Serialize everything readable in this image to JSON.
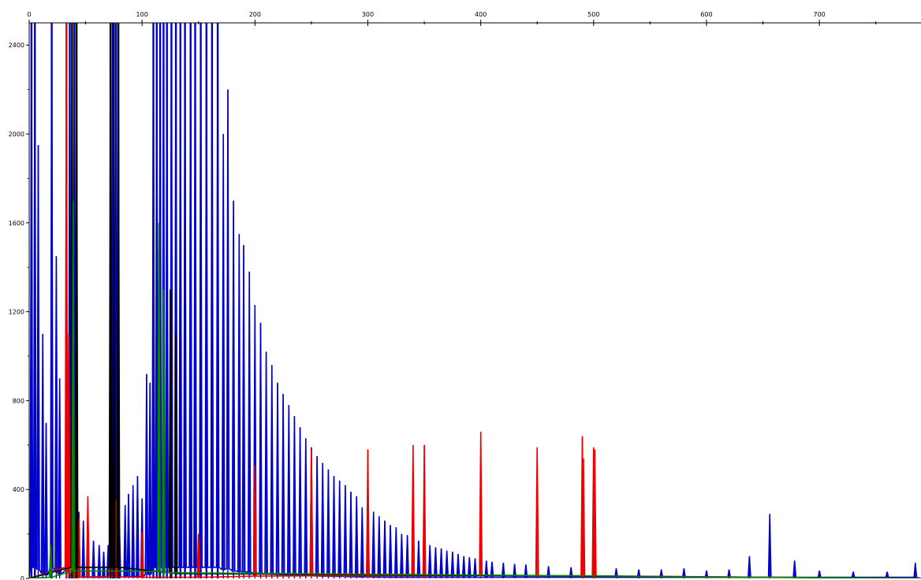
{
  "chart_data": {
    "type": "line",
    "title": "",
    "xlabel": "",
    "ylabel": "",
    "xlim": [
      0,
      790
    ],
    "ylim": [
      0,
      2500
    ],
    "grid": false,
    "x_ticks": [
      0,
      100,
      200,
      300,
      400,
      500,
      600,
      700
    ],
    "y_ticks": [
      0,
      400,
      800,
      1200,
      1600,
      2000,
      2400
    ],
    "x_tick_labels": [
      "0",
      "100",
      "200",
      "300",
      "400",
      "500",
      "600",
      "700"
    ],
    "y_tick_labels": [
      "0",
      "400",
      "800",
      "1200",
      "1600",
      "2000",
      "2400"
    ],
    "series": [
      {
        "color": "#0000cc",
        "peaks": [
          [
            2,
            2500
          ],
          [
            5,
            2500
          ],
          [
            8,
            1950
          ],
          [
            12,
            1100
          ],
          [
            15,
            700
          ],
          [
            20,
            2500
          ],
          [
            24,
            1450
          ],
          [
            27,
            900
          ],
          [
            36,
            2500
          ],
          [
            40,
            2500
          ],
          [
            44,
            300
          ],
          [
            48,
            260
          ],
          [
            52,
            200
          ],
          [
            57,
            170
          ],
          [
            62,
            150
          ],
          [
            66,
            120
          ],
          [
            70,
            150
          ],
          [
            74,
            2500
          ],
          [
            77,
            2500
          ],
          [
            80,
            230
          ],
          [
            85,
            330
          ],
          [
            88,
            380
          ],
          [
            92,
            420
          ],
          [
            96,
            460
          ],
          [
            100,
            360
          ],
          [
            104,
            920
          ],
          [
            107,
            880
          ],
          [
            110,
            2500
          ],
          [
            113,
            2500
          ],
          [
            116,
            2500
          ],
          [
            119,
            2500
          ],
          [
            122,
            2500
          ],
          [
            126,
            2500
          ],
          [
            130,
            2500
          ],
          [
            134,
            2500
          ],
          [
            138,
            2500
          ],
          [
            143,
            2500
          ],
          [
            147,
            2500
          ],
          [
            152,
            2500
          ],
          [
            157,
            2500
          ],
          [
            162,
            2500
          ],
          [
            167,
            2500
          ],
          [
            172,
            2000
          ],
          [
            176,
            2200
          ],
          [
            181,
            1700
          ],
          [
            186,
            1550
          ],
          [
            190,
            1500
          ],
          [
            195,
            1380
          ],
          [
            200,
            1230
          ],
          [
            205,
            1150
          ],
          [
            210,
            1020
          ],
          [
            215,
            960
          ],
          [
            220,
            880
          ],
          [
            225,
            830
          ],
          [
            230,
            780
          ],
          [
            235,
            730
          ],
          [
            240,
            680
          ],
          [
            245,
            630
          ],
          [
            250,
            590
          ],
          [
            255,
            550
          ],
          [
            260,
            520
          ],
          [
            265,
            490
          ],
          [
            270,
            460
          ],
          [
            275,
            440
          ],
          [
            280,
            420
          ],
          [
            285,
            390
          ],
          [
            290,
            370
          ],
          [
            295,
            320
          ],
          [
            300,
            350
          ],
          [
            305,
            300
          ],
          [
            310,
            280
          ],
          [
            315,
            260
          ],
          [
            320,
            240
          ],
          [
            325,
            230
          ],
          [
            330,
            200
          ],
          [
            335,
            195
          ],
          [
            340,
            185
          ],
          [
            345,
            170
          ],
          [
            350,
            160
          ],
          [
            355,
            150
          ],
          [
            360,
            140
          ],
          [
            365,
            135
          ],
          [
            370,
            125
          ],
          [
            375,
            120
          ],
          [
            380,
            110
          ],
          [
            385,
            100
          ],
          [
            390,
            95
          ],
          [
            395,
            90
          ],
          [
            405,
            80
          ],
          [
            410,
            75
          ],
          [
            420,
            70
          ],
          [
            430,
            65
          ],
          [
            440,
            62
          ],
          [
            460,
            55
          ],
          [
            480,
            50
          ],
          [
            500,
            60
          ],
          [
            520,
            45
          ],
          [
            540,
            40
          ],
          [
            560,
            40
          ],
          [
            580,
            45
          ],
          [
            600,
            35
          ],
          [
            620,
            40
          ],
          [
            638,
            100
          ],
          [
            656,
            290
          ],
          [
            678,
            80
          ],
          [
            700,
            35
          ],
          [
            730,
            30
          ],
          [
            760,
            30
          ],
          [
            785,
            70
          ]
        ]
      },
      {
        "color": "#ee0000",
        "peaks": [
          [
            33,
            2500
          ],
          [
            35,
            1100
          ],
          [
            40,
            270
          ],
          [
            44,
            270
          ],
          [
            52,
            370
          ],
          [
            72,
            400
          ],
          [
            77,
            350
          ],
          [
            100,
            210
          ],
          [
            150,
            200
          ],
          [
            200,
            510
          ],
          [
            250,
            580
          ],
          [
            300,
            580
          ],
          [
            340,
            600
          ],
          [
            350,
            600
          ],
          [
            400,
            660
          ],
          [
            450,
            590
          ],
          [
            490,
            640
          ],
          [
            491,
            540
          ],
          [
            500,
            590
          ],
          [
            501,
            580
          ]
        ]
      },
      {
        "color": "#000000",
        "peaks": [
          [
            38,
            2500
          ],
          [
            42,
            2500
          ],
          [
            72,
            2500
          ],
          [
            75,
            2500
          ],
          [
            79,
            2500
          ],
          [
            125,
            1300
          ],
          [
            130,
            1100
          ]
        ]
      },
      {
        "color": "#008800",
        "peaks": [
          [
            19,
            150
          ],
          [
            39,
            1700
          ],
          [
            115,
            1600
          ],
          [
            119,
            1300
          ]
        ]
      }
    ]
  }
}
